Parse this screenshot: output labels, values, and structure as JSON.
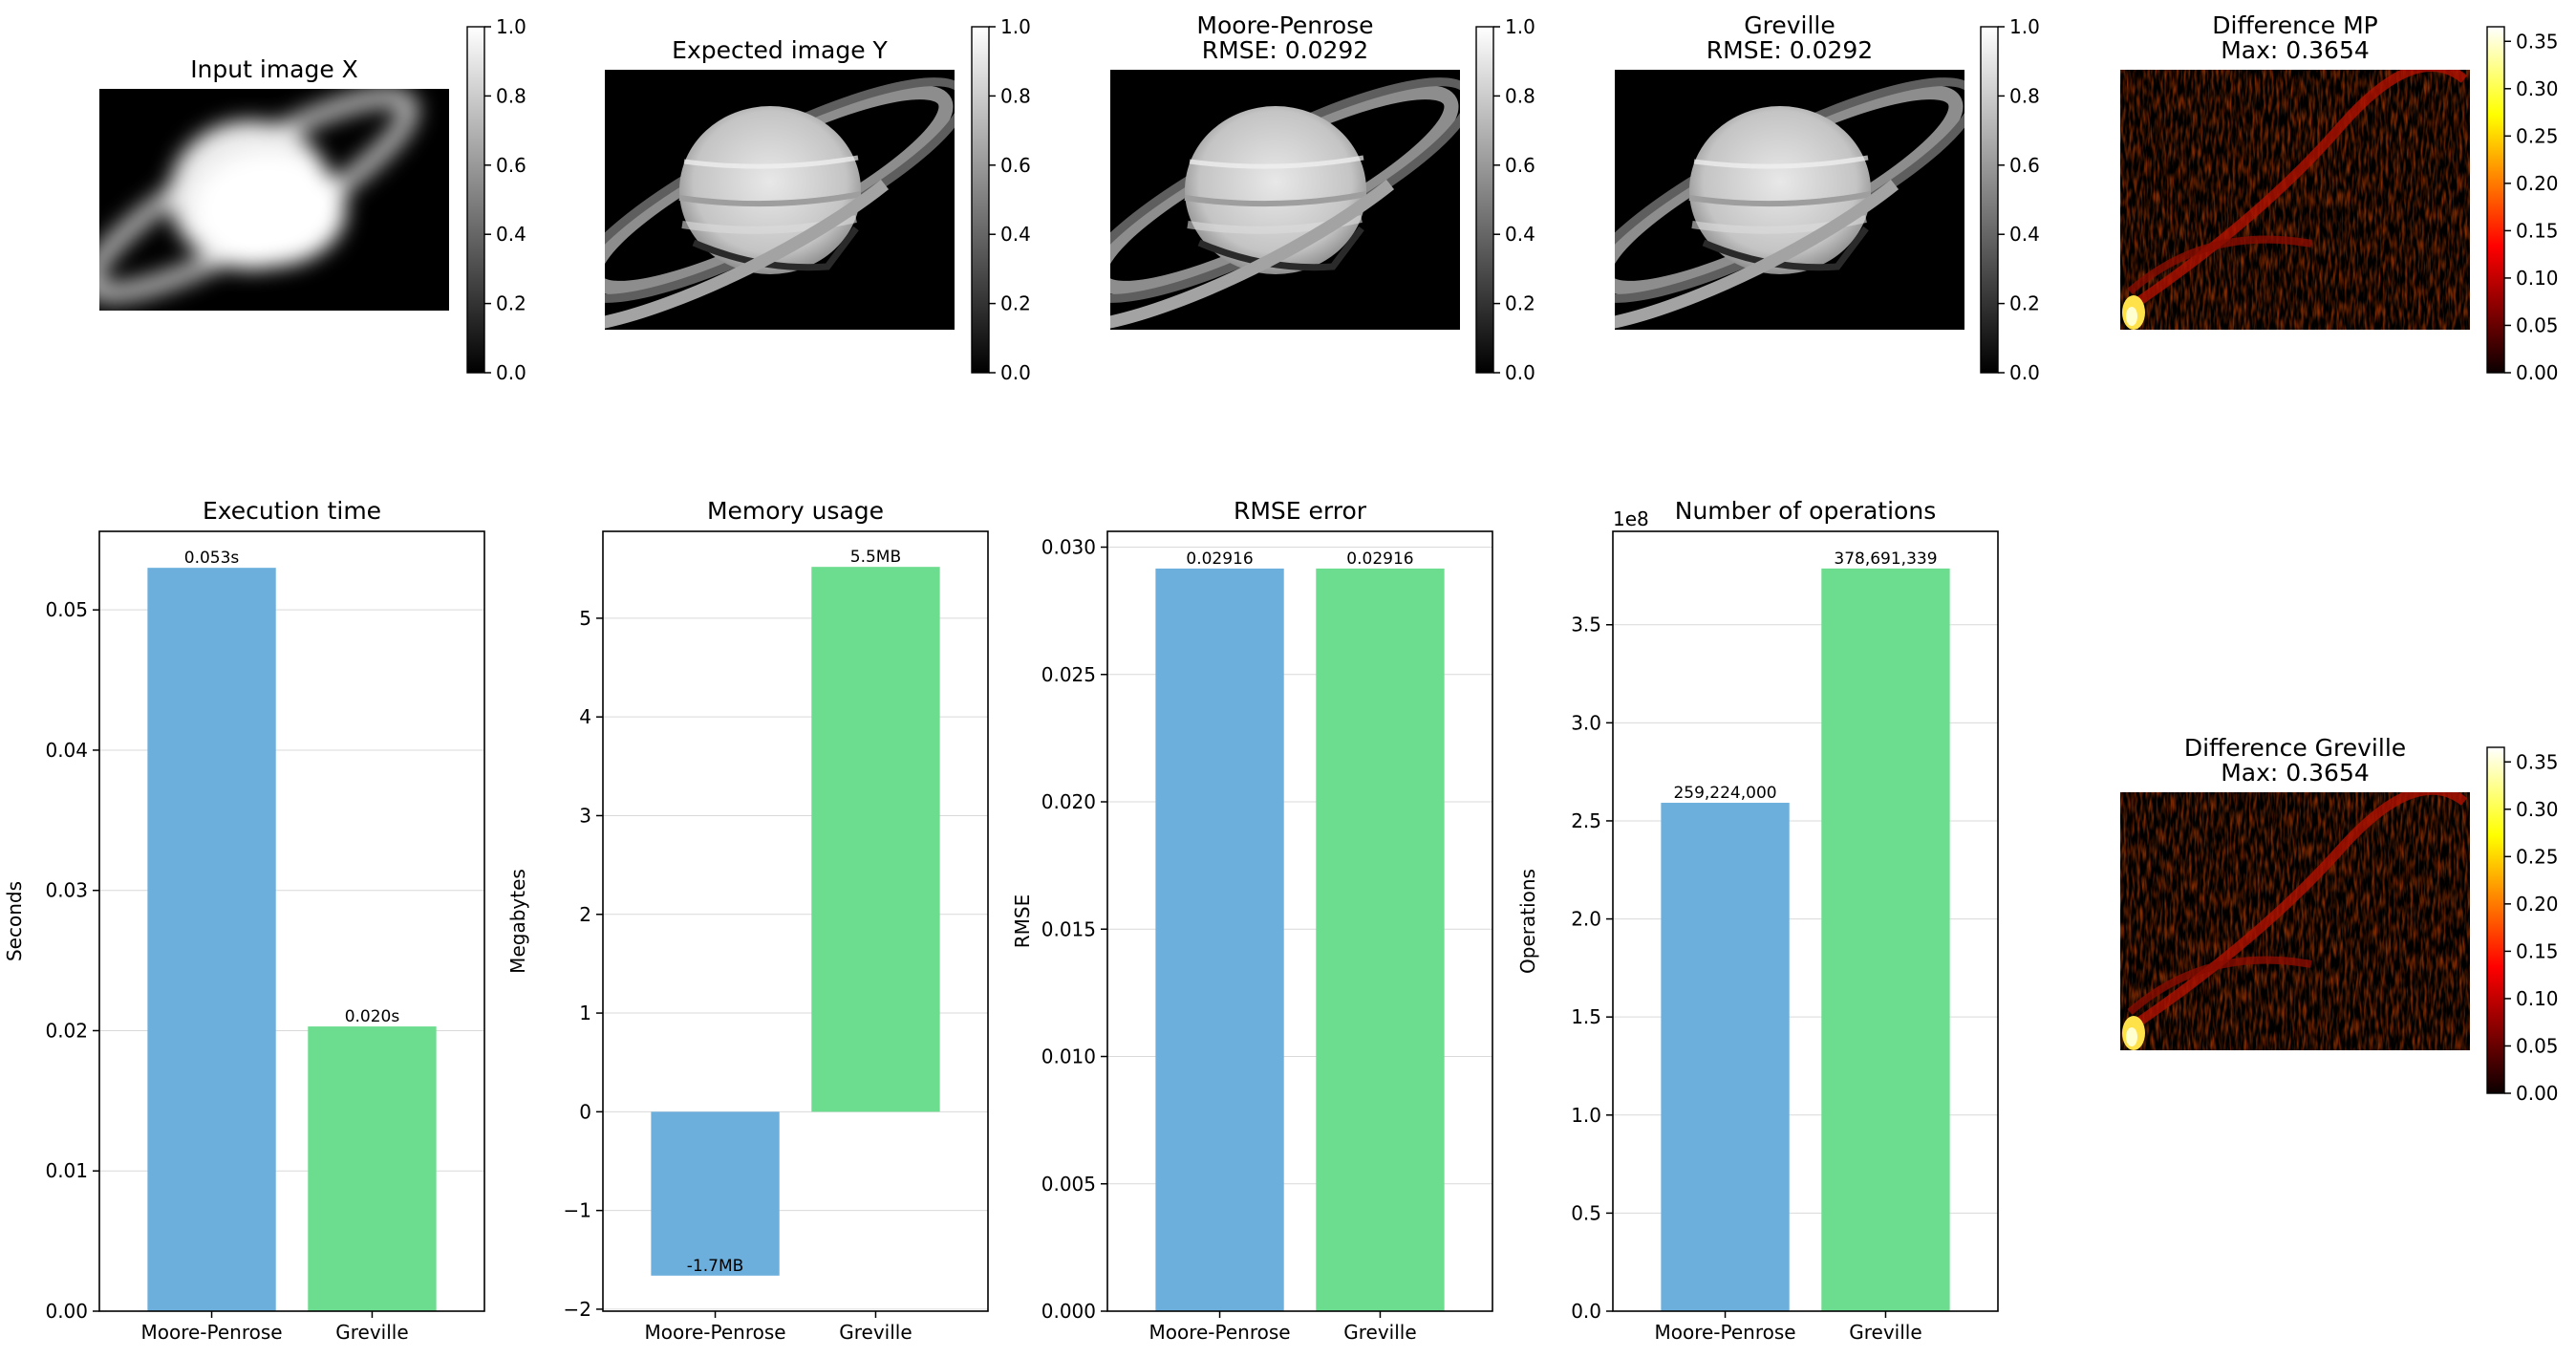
{
  "image_panels": [
    {
      "title": [
        "Input image X"
      ],
      "cmap": "gray",
      "cbar_ticks": [
        "0.0",
        "0.2",
        "0.4",
        "0.6",
        "0.8",
        "1.0"
      ],
      "cbar_max": 1.0,
      "variant": "blurred",
      "icon": "saturn-blurred-image"
    },
    {
      "title": [
        "Expected image Y"
      ],
      "cmap": "gray",
      "cbar_ticks": [
        "0.0",
        "0.2",
        "0.4",
        "0.6",
        "0.8",
        "1.0"
      ],
      "cbar_max": 1.0,
      "variant": "sharp",
      "icon": "saturn-image"
    },
    {
      "title": [
        "Moore-Penrose",
        "RMSE: 0.0292"
      ],
      "cmap": "gray",
      "cbar_ticks": [
        "0.0",
        "0.2",
        "0.4",
        "0.6",
        "0.8",
        "1.0"
      ],
      "cbar_max": 1.0,
      "variant": "sharp",
      "icon": "saturn-reconstruction-image"
    },
    {
      "title": [
        "Greville",
        "RMSE: 0.0292"
      ],
      "cmap": "gray",
      "cbar_ticks": [
        "0.0",
        "0.2",
        "0.4",
        "0.6",
        "0.8",
        "1.0"
      ],
      "cbar_max": 1.0,
      "variant": "sharp",
      "icon": "saturn-reconstruction-image"
    },
    {
      "title": [
        "Difference MP",
        "Max: 0.3654"
      ],
      "cmap": "hot",
      "cbar_ticks": [
        "0.00",
        "0.05",
        "0.10",
        "0.15",
        "0.20",
        "0.25",
        "0.30",
        "0.35"
      ],
      "cbar_max": 0.3654,
      "variant": "diff",
      "icon": "difference-heatmap-image"
    },
    {
      "title": [
        "Difference Greville",
        "Max: 0.3654"
      ],
      "cmap": "hot",
      "cbar_ticks": [
        "0.00",
        "0.05",
        "0.10",
        "0.15",
        "0.20",
        "0.25",
        "0.30",
        "0.35"
      ],
      "cbar_max": 0.3654,
      "variant": "diff",
      "icon": "difference-heatmap-image"
    }
  ],
  "chart_data": [
    {
      "type": "bar",
      "title": "Execution time",
      "ylabel": "Seconds",
      "categories": [
        "Moore-Penrose",
        "Greville"
      ],
      "values": [
        0.053,
        0.0203
      ],
      "labels": [
        "0.053s",
        "0.020s"
      ],
      "ylim": [
        0,
        0.0556
      ],
      "yticks": [
        0,
        0.01,
        0.02,
        0.03,
        0.04,
        0.05
      ],
      "ytick_labels": [
        "0.00",
        "0.01",
        "0.02",
        "0.03",
        "0.04",
        "0.05"
      ],
      "colors": [
        "#6cafdc",
        "#6cdc8e"
      ],
      "grid": true
    },
    {
      "type": "bar",
      "title": "Memory usage",
      "ylabel": "Megabytes",
      "categories": [
        "Moore-Penrose",
        "Greville"
      ],
      "values": [
        -1.66,
        5.52
      ],
      "labels": [
        "-1.7MB",
        "5.5MB"
      ],
      "ylim": [
        -2.02,
        5.88
      ],
      "yticks": [
        -2,
        -1,
        0,
        1,
        2,
        3,
        4,
        5
      ],
      "ytick_labels": [
        "−2",
        "−1",
        "0",
        "1",
        "2",
        "3",
        "4",
        "5"
      ],
      "colors": [
        "#6cafdc",
        "#6cdc8e"
      ],
      "grid": true
    },
    {
      "type": "bar",
      "title": "RMSE error",
      "ylabel": "RMSE",
      "categories": [
        "Moore-Penrose",
        "Greville"
      ],
      "values": [
        0.02916,
        0.02916
      ],
      "labels": [
        "0.02916",
        "0.02916"
      ],
      "ylim": [
        0,
        0.03062
      ],
      "yticks": [
        0,
        0.005,
        0.01,
        0.015,
        0.02,
        0.025,
        0.03
      ],
      "ytick_labels": [
        "0.000",
        "0.005",
        "0.010",
        "0.015",
        "0.020",
        "0.025",
        "0.030"
      ],
      "colors": [
        "#6cafdc",
        "#6cdc8e"
      ],
      "grid": true
    },
    {
      "type": "bar",
      "title": "Number of operations",
      "ylabel": "Operations",
      "categories": [
        "Moore-Penrose",
        "Greville"
      ],
      "values": [
        259224000,
        378691339
      ],
      "labels": [
        "259,224,000",
        "378,691,339"
      ],
      "ylim": [
        0,
        397625906
      ],
      "yticks": [
        0,
        50000000,
        100000000,
        150000000,
        200000000,
        250000000,
        300000000,
        350000000
      ],
      "ytick_labels": [
        "0.0",
        "0.5",
        "1.0",
        "1.5",
        "2.0",
        "2.5",
        "3.0",
        "3.5"
      ],
      "offset_label": "1e8",
      "colors": [
        "#6cafdc",
        "#6cdc8e"
      ],
      "grid": true
    }
  ]
}
